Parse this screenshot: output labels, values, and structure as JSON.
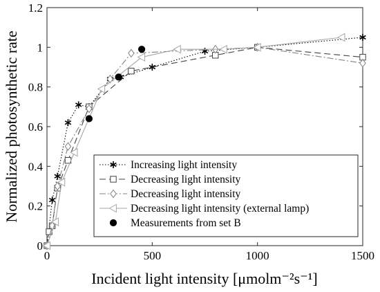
{
  "chart_data": {
    "type": "line",
    "title": "",
    "xlabel": "Incident light intensity [μmolm⁻²s⁻¹]",
    "ylabel": "Normalized photosynthetic rate",
    "xlim": [
      0,
      1500
    ],
    "ylim": [
      0,
      1.2
    ],
    "xticks": [
      "0",
      "500",
      "1000",
      "1500"
    ],
    "yticks": [
      "0",
      "0.2",
      "0.4",
      "0.6",
      "0.8",
      "1",
      "1.2"
    ],
    "grid": false,
    "legend_position": "bottom-right",
    "series": [
      {
        "name": "Increasing light intensity",
        "color": "#000000",
        "line_style": "dotted",
        "marker": "asterisk",
        "points": [
          [
            0,
            0
          ],
          [
            25,
            0.23
          ],
          [
            50,
            0.35
          ],
          [
            100,
            0.62
          ],
          [
            150,
            0.71
          ],
          [
            200,
            0.7
          ],
          [
            300,
            0.84
          ],
          [
            350,
            0.85
          ],
          [
            500,
            0.9
          ],
          [
            750,
            0.98
          ],
          [
            1000,
            1.0
          ],
          [
            1500,
            1.05
          ]
        ]
      },
      {
        "name": "Decreasing light intensity",
        "color": "#404040",
        "line_style": "dashed",
        "marker": "square",
        "points": [
          [
            0,
            0
          ],
          [
            10,
            0.07
          ],
          [
            25,
            0.1
          ],
          [
            50,
            0.29
          ],
          [
            100,
            0.43
          ],
          [
            200,
            0.7
          ],
          [
            400,
            0.88
          ],
          [
            800,
            0.96
          ],
          [
            1000,
            1.0
          ],
          [
            1500,
            0.95
          ]
        ]
      },
      {
        "name": "Decreasing light intensity",
        "color": "#808080",
        "line_style": "dashdot",
        "marker": "diamond",
        "points": [
          [
            0,
            0
          ],
          [
            25,
            0.1
          ],
          [
            50,
            0.3
          ],
          [
            100,
            0.5
          ],
          [
            200,
            0.69
          ],
          [
            300,
            0.84
          ],
          [
            400,
            0.97
          ],
          [
            800,
            0.99
          ],
          [
            1000,
            1.0
          ],
          [
            1500,
            0.92
          ]
        ]
      },
      {
        "name": "Decreasing light intensity (external lamp)",
        "color": "#a6a6a6",
        "line_style": "solid",
        "marker": "triangle-left",
        "points": [
          [
            0,
            0
          ],
          [
            40,
            0.12
          ],
          [
            70,
            0.32
          ],
          [
            130,
            0.47
          ],
          [
            260,
            0.79
          ],
          [
            450,
            0.95
          ],
          [
            620,
            0.99
          ],
          [
            840,
            0.99
          ],
          [
            1000,
            1.0
          ],
          [
            1400,
            1.05
          ]
        ]
      },
      {
        "name": "Measurements from set B",
        "color": "#000000",
        "line_style": "none",
        "marker": "filled-circle",
        "points": [
          [
            200,
            0.64
          ],
          [
            340,
            0.85
          ],
          [
            450,
            0.99
          ]
        ]
      }
    ]
  }
}
